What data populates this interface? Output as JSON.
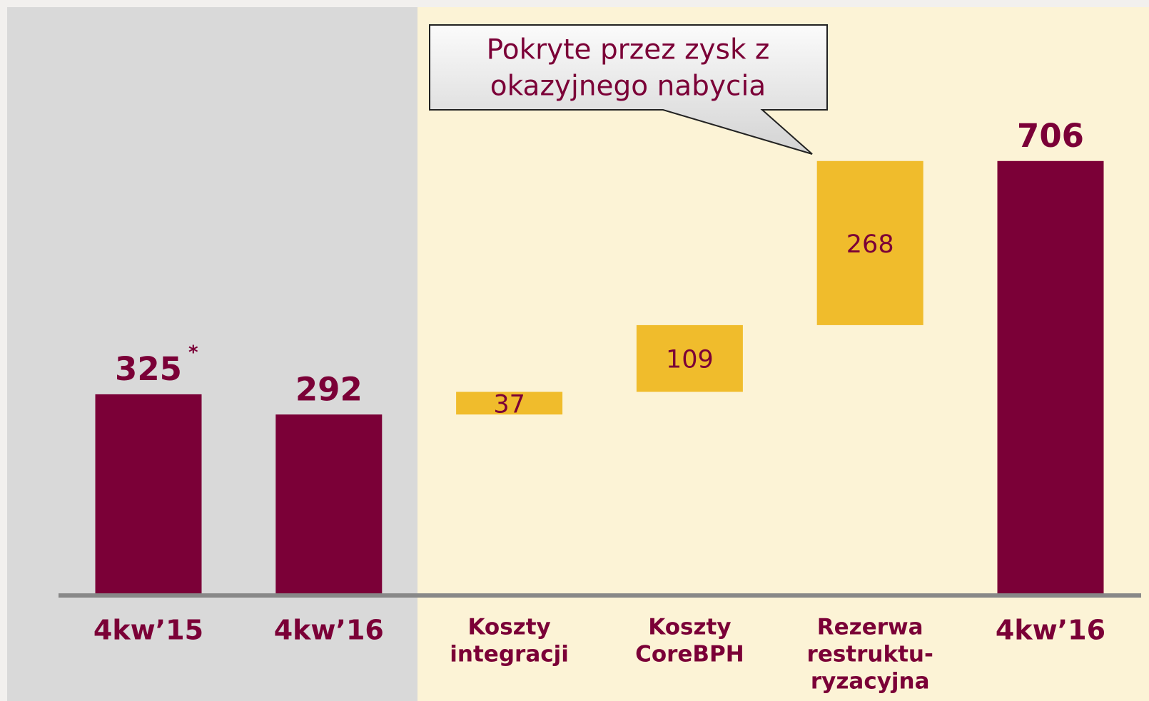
{
  "chart_data": {
    "type": "waterfall",
    "categories": [
      [
        "4kw’15"
      ],
      [
        "4kw’16"
      ],
      [
        "Koszty",
        "integracji"
      ],
      [
        "Koszty",
        "CoreBPH"
      ],
      [
        "Rezerwa",
        "restruktu-",
        "ryzacyjna"
      ],
      [
        "4kw’16"
      ]
    ],
    "values": [
      325,
      292,
      37,
      109,
      268,
      706
    ],
    "kinds": [
      "total",
      "total",
      "delta",
      "delta",
      "delta",
      "total"
    ],
    "total_color": "#7b0037",
    "delta_color": "#f0bc2c",
    "note_marker": "*",
    "annotation": [
      "Pokryte przez zysk z",
      "okazyjnego nabycia"
    ],
    "ylim": [
      0,
      750
    ]
  }
}
